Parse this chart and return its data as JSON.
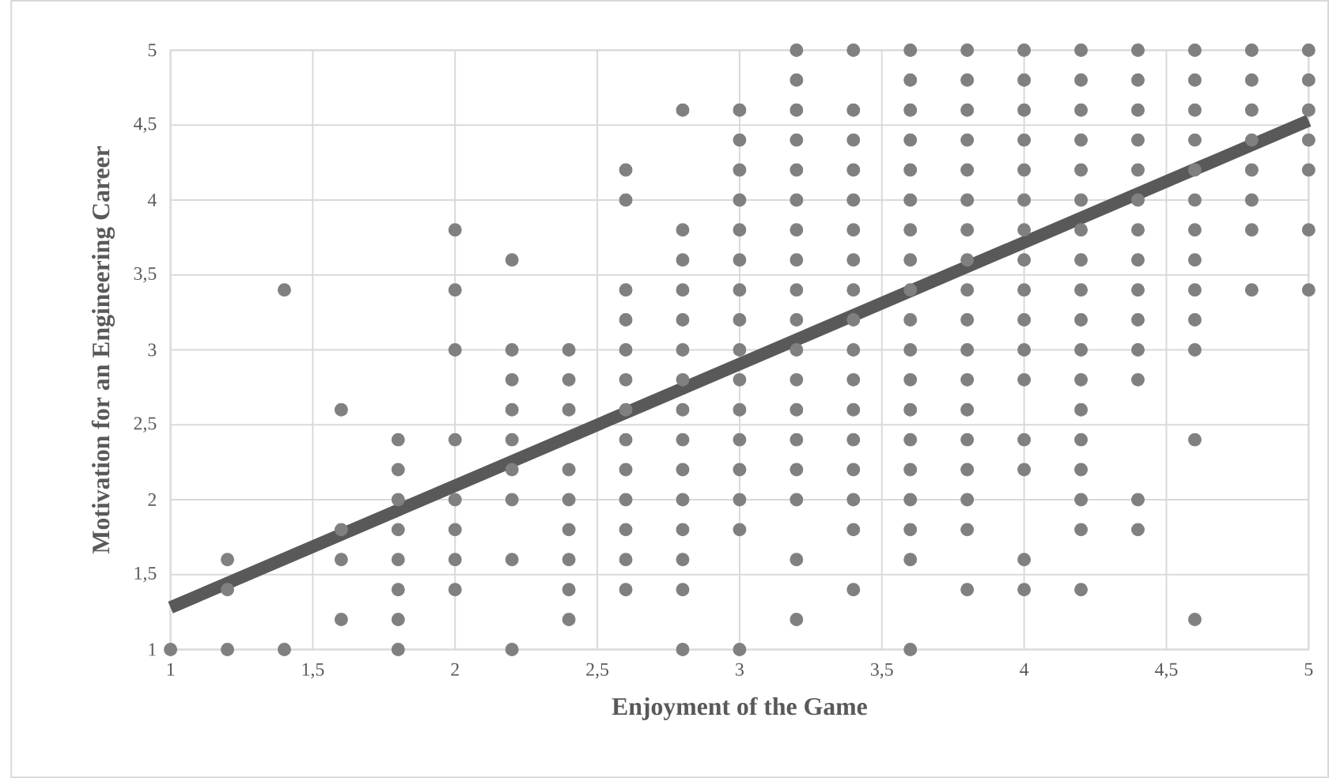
{
  "chart_data": {
    "type": "scatter",
    "xlabel": "Enjoyment of the Game",
    "ylabel": "Motivation for an Engineering Career",
    "xlim": [
      1,
      5
    ],
    "ylim": [
      1,
      5
    ],
    "xticks": [
      1,
      {
        "value": 1.5,
        "label": "1,5"
      },
      2,
      {
        "value": 2.5,
        "label": "2,5"
      },
      3,
      {
        "value": 3.5,
        "label": "3,5"
      },
      4,
      {
        "value": 4.5,
        "label": "4,5"
      },
      5
    ],
    "yticks": [
      1,
      {
        "value": 1.5,
        "label": "1,5"
      },
      2,
      {
        "value": 2.5,
        "label": "2,5"
      },
      3,
      {
        "value": 3.5,
        "label": "3,5"
      },
      4,
      {
        "value": 4.5,
        "label": "4,5"
      },
      5
    ],
    "grid": true,
    "series": [
      {
        "marker": "circle",
        "color": "#808080",
        "x": [
          1,
          1.2,
          1.2,
          1.2,
          1.4,
          1.4,
          1.6,
          1.6,
          1.6,
          1.6,
          1.8,
          1.8,
          1.8,
          1.8,
          1.8,
          1.8,
          1.8,
          1.8,
          2,
          2,
          2,
          2,
          2,
          2,
          2,
          2,
          2.2,
          2.2,
          2.2,
          2.2,
          2.2,
          2.2,
          2.2,
          2.2,
          2.2,
          2.4,
          2.4,
          2.4,
          2.4,
          2.4,
          2.4,
          2.4,
          2.4,
          2.4,
          2.6,
          2.6,
          2.6,
          2.6,
          2.6,
          2.6,
          2.6,
          2.6,
          2.6,
          2.6,
          2.6,
          2.6,
          2.6,
          2.8,
          2.8,
          2.8,
          2.8,
          2.8,
          2.8,
          2.8,
          2.8,
          2.8,
          2.8,
          2.8,
          2.8,
          2.8,
          2.8,
          2.8,
          3,
          3,
          3,
          3,
          3,
          3,
          3,
          3,
          3,
          3,
          3,
          3,
          3,
          3,
          3,
          3,
          3.2,
          3.2,
          3.2,
          3.2,
          3.2,
          3.2,
          3.2,
          3.2,
          3.2,
          3.2,
          3.2,
          3.2,
          3.2,
          3.2,
          3.2,
          3.2,
          3.2,
          3.2,
          3.4,
          3.4,
          3.4,
          3.4,
          3.4,
          3.4,
          3.4,
          3.4,
          3.4,
          3.4,
          3.4,
          3.4,
          3.4,
          3.4,
          3.4,
          3.4,
          3.4,
          3.6,
          3.6,
          3.6,
          3.6,
          3.6,
          3.6,
          3.6,
          3.6,
          3.6,
          3.6,
          3.6,
          3.6,
          3.6,
          3.6,
          3.6,
          3.6,
          3.6,
          3.6,
          3.6,
          3.8,
          3.8,
          3.8,
          3.8,
          3.8,
          3.8,
          3.8,
          3.8,
          3.8,
          3.8,
          3.8,
          3.8,
          3.8,
          3.8,
          3.8,
          3.8,
          3.8,
          3.8,
          4,
          4,
          4,
          4,
          4,
          4,
          4,
          4,
          4,
          4,
          4,
          4,
          4,
          4,
          4,
          4,
          4.2,
          4.2,
          4.2,
          4.2,
          4.2,
          4.2,
          4.2,
          4.2,
          4.2,
          4.2,
          4.2,
          4.2,
          4.2,
          4.2,
          4.2,
          4.2,
          4.2,
          4.2,
          4.4,
          4.4,
          4.4,
          4.4,
          4.4,
          4.4,
          4.4,
          4.4,
          4.4,
          4.4,
          4.4,
          4.4,
          4.4,
          4.4,
          4.6,
          4.6,
          4.6,
          4.6,
          4.6,
          4.6,
          4.6,
          4.6,
          4.6,
          4.6,
          4.6,
          4.6,
          4.6,
          4.8,
          4.8,
          4.8,
          4.8,
          4.8,
          4.8,
          4.8,
          4.8,
          5,
          5,
          5,
          5,
          5,
          5,
          5
        ],
        "values": [
          1,
          1,
          1.4,
          1.6,
          1,
          3.4,
          1.2,
          1.6,
          1.8,
          2.6,
          1,
          1.2,
          1.4,
          1.6,
          1.8,
          2,
          2.2,
          2.4,
          1.4,
          1.6,
          1.8,
          2,
          2.4,
          3,
          3.4,
          3.8,
          1,
          1.6,
          2,
          2.2,
          2.4,
          2.6,
          2.8,
          3,
          3.6,
          1.2,
          1.4,
          1.6,
          1.8,
          2,
          2.2,
          2.6,
          2.8,
          3,
          1.4,
          1.6,
          1.8,
          2,
          2.2,
          2.4,
          2.6,
          2.8,
          3,
          3.2,
          3.4,
          4,
          4.2,
          1,
          1.4,
          1.6,
          1.8,
          2,
          2.2,
          2.4,
          2.6,
          2.8,
          3,
          3.2,
          3.4,
          3.6,
          3.8,
          4.6,
          1,
          1.8,
          2,
          2.2,
          2.4,
          2.6,
          2.8,
          3,
          3.2,
          3.4,
          3.6,
          3.8,
          4,
          4.2,
          4.4,
          4.6,
          1.2,
          1.6,
          2,
          2.2,
          2.4,
          2.6,
          2.8,
          3,
          3.2,
          3.4,
          3.6,
          3.8,
          4,
          4.2,
          4.4,
          4.6,
          4.8,
          5,
          1.4,
          1.8,
          2,
          2.2,
          2.4,
          2.6,
          2.8,
          3,
          3.2,
          3.4,
          3.6,
          3.8,
          4,
          4.2,
          4.4,
          4.6,
          5,
          1,
          1.6,
          1.8,
          2,
          2.2,
          2.4,
          2.6,
          2.8,
          3,
          3.2,
          3.4,
          3.6,
          3.8,
          4,
          4.2,
          4.4,
          4.6,
          4.8,
          5,
          1.4,
          1.8,
          2,
          2.2,
          2.4,
          2.6,
          2.8,
          3,
          3.2,
          3.4,
          3.6,
          3.8,
          4,
          4.2,
          4.4,
          4.6,
          4.8,
          5,
          1.4,
          1.6,
          2.2,
          2.4,
          2.8,
          3,
          3.2,
          3.4,
          3.6,
          3.8,
          4,
          4.2,
          4.4,
          4.6,
          4.8,
          5,
          1.4,
          1.8,
          2,
          2.2,
          2.4,
          2.6,
          2.8,
          3,
          3.2,
          3.4,
          3.6,
          3.8,
          4,
          4.2,
          4.4,
          4.6,
          4.8,
          5,
          1.8,
          2,
          2.8,
          3,
          3.2,
          3.4,
          3.6,
          3.8,
          4,
          4.2,
          4.4,
          4.6,
          4.8,
          5,
          1.2,
          2.4,
          3,
          3.2,
          3.4,
          3.6,
          3.8,
          4,
          4.2,
          4.4,
          4.6,
          4.8,
          5,
          3.4,
          3.8,
          4,
          4.2,
          4.4,
          4.6,
          4.8,
          5,
          3.4,
          3.8,
          4.2,
          4.4,
          4.6,
          4.8,
          5
        ]
      },
      {
        "type": "line",
        "color": "#595959",
        "line_style": "solid",
        "marker": "none",
        "x": [
          1,
          5
        ],
        "values": [
          1.28,
          4.53
        ]
      }
    ]
  }
}
